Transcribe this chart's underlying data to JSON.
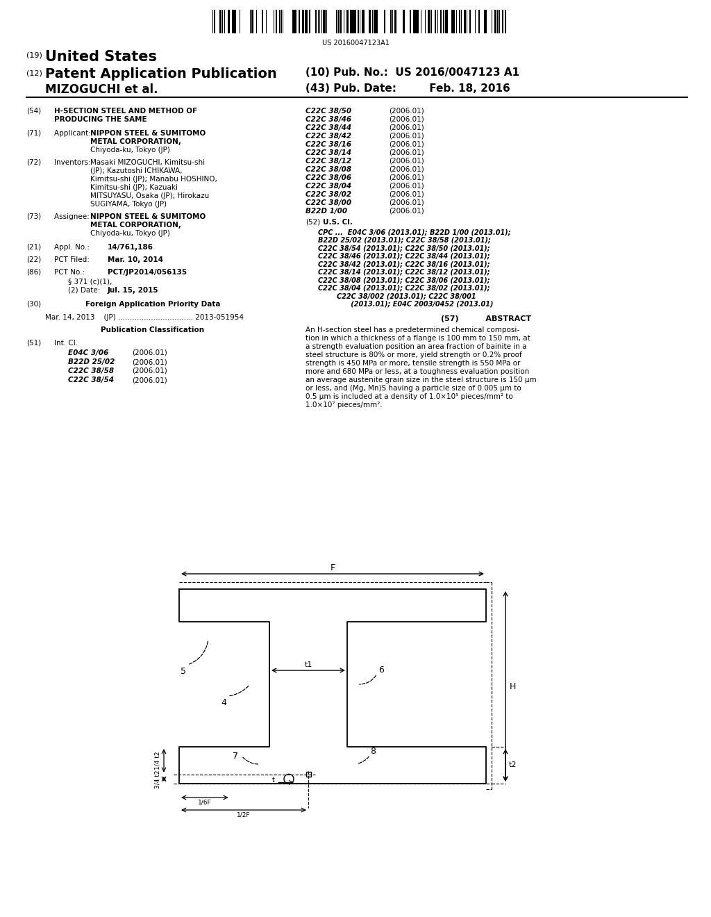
{
  "bg_color": "#ffffff",
  "barcode_text": "US 20160047123A1",
  "right_col_classifications": [
    [
      "C22C 38/50",
      "(2006.01)"
    ],
    [
      "C22C 38/46",
      "(2006.01)"
    ],
    [
      "C22C 38/44",
      "(2006.01)"
    ],
    [
      "C22C 38/42",
      "(2006.01)"
    ],
    [
      "C22C 38/16",
      "(2006.01)"
    ],
    [
      "C22C 38/14",
      "(2006.01)"
    ],
    [
      "C22C 38/12",
      "(2006.01)"
    ],
    [
      "C22C 38/08",
      "(2006.01)"
    ],
    [
      "C22C 38/06",
      "(2006.01)"
    ],
    [
      "C22C 38/04",
      "(2006.01)"
    ],
    [
      "C22C 38/02",
      "(2006.01)"
    ],
    [
      "C22C 38/00",
      "(2006.01)"
    ],
    [
      "B22D 1/00",
      "(2006.01)"
    ]
  ],
  "cpc_lines": [
    "CPC ...  E04C 3/06 (2013.01); B22D 1/00 (2013.01);",
    "B22D 25/02 (2013.01); C22C 38/58 (2013.01);",
    "C22C 38/54 (2013.01); C22C 38/50 (2013.01);",
    "C22C 38/46 (2013.01); C22C 38/44 (2013.01);",
    "C22C 38/42 (2013.01); C22C 38/16 (2013.01);",
    "C22C 38/14 (2013.01); C22C 38/12 (2013.01);",
    "C22C 38/08 (2013.01); C22C 38/06 (2013.01);",
    "C22C 38/04 (2013.01); C22C 38/02 (2013.01);",
    "        C22C 38/002 (2013.01); C22C 38/001",
    "              (2013.01); E04C 2003/0452 (2013.01)"
  ],
  "abstract_lines": [
    "An H-section steel has a predetermined chemical composi-",
    "tion in which a thickness of a flange is 100 mm to 150 mm, at",
    "a strength evaluation position an area fraction of bainite in a",
    "steel structure is 80% or more, yield strength or 0.2% proof",
    "strength is 450 MPa or more, tensile strength is 550 MPa or",
    "more and 680 MPa or less, at a toughness evaluation position",
    "an average austenite grain size in the steel structure is 150 μm",
    "or less, and (Mg, Mn)S having a particle size of 0.005 μm to",
    "0.5 μm is included at a density of 1.0×10⁵ pieces/mm² to",
    "1.0×10⁷ pieces/mm²."
  ]
}
